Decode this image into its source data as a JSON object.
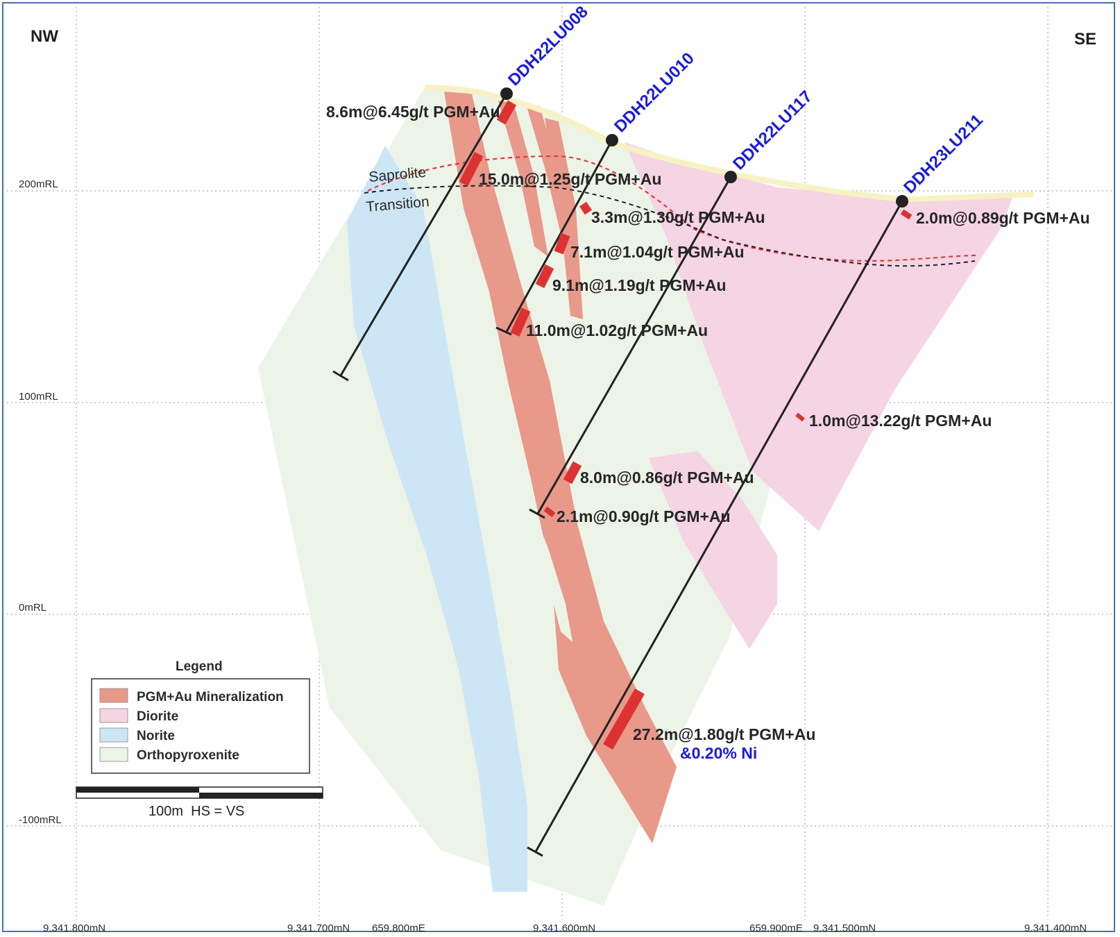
{
  "orientation": {
    "left": "NW",
    "right": "SE"
  },
  "elevation_labels": [
    "200mRL",
    "100mRL",
    "0mRL",
    "-100mRL"
  ],
  "bottom_labels": [
    "9.341.800mN",
    "9.341.700mN",
    "659.800mE",
    "9.341.600mN",
    "659.900mE",
    "9.341.500mN",
    "9.341.400mN"
  ],
  "weathering": {
    "saprolite": "Saprolite",
    "transition": "Transition"
  },
  "drillholes": [
    {
      "id": "DDH22LU008"
    },
    {
      "id": "DDH22LU010"
    },
    {
      "id": "DDH22LU117"
    },
    {
      "id": "DDH23LU211"
    }
  ],
  "intercepts": [
    "8.6m@6.45g/t PGM+Au",
    "15.0m@1.25g/t PGM+Au",
    "3.3m@1.30g/t PGM+Au",
    "7.1m@1.04g/t PGM+Au",
    "9.1m@1.19g/t PGM+Au",
    "11.0m@1.02g/t PGM+Au",
    "2.0m@0.89g/t PGM+Au",
    "1.0m@13.22g/t PGM+Au",
    "8.0m@0.86g/t PGM+Au",
    "2.1m@0.90g/t PGM+Au",
    "27.2m@1.80g/t PGM+Au"
  ],
  "nickel_note": "&0.20% Ni",
  "legend": {
    "title": "Legend",
    "items": [
      {
        "label": "PGM+Au Mineralization",
        "color": "#e8998a"
      },
      {
        "label": "Diorite",
        "color": "#f5d4e3"
      },
      {
        "label": "Norite",
        "color": "#cde6f6"
      },
      {
        "label": "Orthopyroxenite",
        "color": "#ecf4e8"
      }
    ]
  },
  "scale": {
    "label": "100m  HS = VS"
  },
  "colors": {
    "mineralization": "#e8998a",
    "diorite": "#f5d4e3",
    "norite": "#cde6f6",
    "orthopyroxenite": "#ecf4e8",
    "intercept_bar": "#dc3232",
    "hole_label": "#1a1adf",
    "frame": "#4a6fb5"
  }
}
